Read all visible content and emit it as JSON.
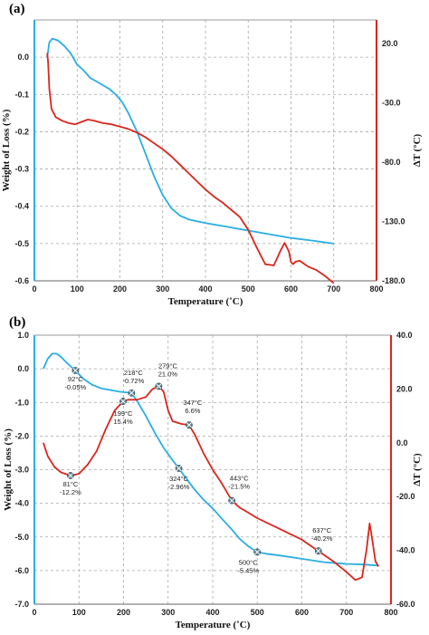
{
  "colors": {
    "weight": "#29aee3",
    "dt": "#d9261c",
    "axis_right": "#d9261c",
    "grid": "#a8a8a8",
    "marker": "#5a7f8c"
  },
  "chart_data": [
    {
      "type": "line",
      "panel": "(a)",
      "xlabel": "Temperature (˚C)",
      "ylabel": "Weight of Loss (%)",
      "y2label": "ΔT (°C)",
      "xlim": [
        0,
        800
      ],
      "ylim": [
        -0.6,
        0.1
      ],
      "y2lim": [
        -180,
        40
      ],
      "xticks": [
        0,
        100,
        200,
        300,
        400,
        500,
        600,
        700,
        800
      ],
      "yticks": [
        0.0,
        -0.1,
        -0.2,
        -0.3,
        -0.4,
        -0.5,
        -0.6
      ],
      "ytick_labels": [
        "0.0",
        "-0.1",
        "-0.2",
        "-0.3",
        "-0.4",
        "-0.5",
        "-0.6"
      ],
      "y2ticks": [
        20,
        -30,
        -80,
        -130,
        -180
      ],
      "y2tick_labels": [
        "20.0",
        "-30.0",
        "-80.0",
        "-130.0",
        "-180.0"
      ],
      "grid": true,
      "series": [
        {
          "axis": "left",
          "color": "#29aee3",
          "x": [
            30,
            35,
            42,
            55,
            70,
            85,
            100,
            115,
            130,
            145,
            160,
            175,
            190,
            205,
            220,
            240,
            260,
            280,
            300,
            320,
            340,
            360,
            380,
            400,
            450,
            500,
            550,
            600,
            650,
            700
          ],
          "y": [
            0.0,
            0.04,
            0.05,
            0.045,
            0.03,
            0.01,
            -0.02,
            -0.035,
            -0.055,
            -0.065,
            -0.075,
            -0.085,
            -0.1,
            -0.12,
            -0.15,
            -0.2,
            -0.26,
            -0.32,
            -0.37,
            -0.405,
            -0.425,
            -0.435,
            -0.44,
            -0.445,
            -0.455,
            -0.465,
            -0.475,
            -0.485,
            -0.492,
            -0.5
          ]
        },
        {
          "axis": "right",
          "color": "#d9261c",
          "x": [
            30,
            32,
            35,
            40,
            50,
            65,
            80,
            95,
            110,
            125,
            140,
            160,
            180,
            200,
            220,
            240,
            260,
            280,
            300,
            320,
            340,
            360,
            380,
            400,
            420,
            440,
            460,
            480,
            500,
            520,
            540,
            560,
            575,
            585,
            595,
            600,
            605,
            610,
            620,
            640,
            660,
            680,
            700
          ],
          "y": [
            12,
            5,
            -18,
            -35,
            -42,
            -45,
            -47,
            -48,
            -46,
            -44,
            -45,
            -47,
            -48,
            -50,
            -52,
            -55,
            -59,
            -64,
            -69,
            -75,
            -82,
            -89,
            -96,
            -103,
            -109,
            -114,
            -120,
            -126,
            -137,
            -152,
            -166,
            -167,
            -155,
            -148,
            -155,
            -164,
            -166,
            -164,
            -163,
            -168,
            -171,
            -176,
            -182
          ]
        }
      ]
    },
    {
      "type": "line",
      "panel": "(b)",
      "xlabel": "Temperature (˚C)",
      "ylabel": "Weight of Loss (%)",
      "y2label": "ΔT (°C)",
      "xlim": [
        0,
        800
      ],
      "ylim": [
        -7.0,
        1.0
      ],
      "y2lim": [
        -60,
        40
      ],
      "xticks": [
        0,
        100,
        200,
        300,
        400,
        500,
        600,
        700,
        800
      ],
      "yticks": [
        1.0,
        0.0,
        -1.0,
        -2.0,
        -3.0,
        -4.0,
        -5.0,
        -6.0,
        -7.0
      ],
      "ytick_labels": [
        "1.0",
        "0.0",
        "-1.0",
        "-2.0",
        "-3.0",
        "-4.0",
        "-5.0",
        "-6.0",
        "-7.0"
      ],
      "y2ticks": [
        40,
        20,
        0,
        -20,
        -40,
        -60
      ],
      "y2tick_labels": [
        "40.0",
        "20.0",
        "0.0",
        "-20.0",
        "-40.0",
        "-60.0"
      ],
      "grid": true,
      "series": [
        {
          "axis": "left",
          "color": "#29aee3",
          "x": [
            20,
            30,
            40,
            50,
            60,
            75,
            92,
            110,
            130,
            150,
            170,
            190,
            205,
            218,
            230,
            250,
            270,
            290,
            310,
            324,
            340,
            360,
            380,
            400,
            420,
            443,
            460,
            480,
            500,
            520,
            550,
            600,
            650,
            700,
            740,
            770
          ],
          "y": [
            0.0,
            0.3,
            0.45,
            0.45,
            0.35,
            0.15,
            -0.05,
            -0.3,
            -0.48,
            -0.58,
            -0.63,
            -0.68,
            -0.7,
            -0.72,
            -0.95,
            -1.4,
            -1.9,
            -2.35,
            -2.72,
            -2.96,
            -3.25,
            -3.6,
            -3.9,
            -4.15,
            -4.45,
            -4.78,
            -5.05,
            -5.28,
            -5.45,
            -5.5,
            -5.55,
            -5.65,
            -5.75,
            -5.8,
            -5.82,
            -5.85
          ]
        },
        {
          "axis": "right",
          "color": "#d9261c",
          "x": [
            20,
            30,
            45,
            60,
            81,
            100,
            120,
            140,
            160,
            180,
            199,
            210,
            230,
            250,
            265,
            279,
            290,
            300,
            310,
            320,
            330,
            347,
            360,
            380,
            400,
            420,
            443,
            460,
            480,
            500,
            550,
            600,
            637,
            670,
            700,
            720,
            735,
            745,
            752,
            758,
            765,
            772
          ],
          "y": [
            0,
            -5,
            -9,
            -11,
            -12.2,
            -11.5,
            -8,
            -3,
            5,
            12,
            15.4,
            16,
            16,
            17,
            20,
            21.0,
            19,
            12,
            8,
            7.5,
            7,
            6.6,
            3,
            -4,
            -10,
            -15,
            -21.5,
            -24,
            -26,
            -28,
            -32,
            -36,
            -40.2,
            -44,
            -48,
            -51,
            -50,
            -40,
            -30,
            -36,
            -44,
            -46
          ]
        }
      ],
      "annotations": [
        {
          "t": "92°C",
          "v": "-0.05%",
          "x": 92,
          "y": -0.05,
          "axis": "left"
        },
        {
          "t": "218°C",
          "v": "-0.72%",
          "x": 218,
          "y": -0.72,
          "axis": "left"
        },
        {
          "t": "324°C",
          "v": "-2.96%",
          "x": 324,
          "y": -2.96,
          "axis": "left"
        },
        {
          "t": "500°C",
          "v": "-5.45%",
          "x": 500,
          "y": -5.45,
          "axis": "left"
        },
        {
          "t": "81°C",
          "v": "-12.2%",
          "x": 81,
          "y": -12.2,
          "axis": "right"
        },
        {
          "t": "199°C",
          "v": "15.4%",
          "x": 199,
          "y": 15.4,
          "axis": "right"
        },
        {
          "t": "279°C",
          "v": "21.0%",
          "x": 279,
          "y": 21.0,
          "axis": "right"
        },
        {
          "t": "347°C",
          "v": "6.6%",
          "x": 347,
          "y": 6.6,
          "axis": "right"
        },
        {
          "t": "443°C",
          "v": "-21.5%",
          "x": 443,
          "y": -21.5,
          "axis": "right"
        },
        {
          "t": "637°C",
          "v": "-40.2%",
          "x": 637,
          "y": -40.2,
          "axis": "right"
        }
      ]
    }
  ]
}
